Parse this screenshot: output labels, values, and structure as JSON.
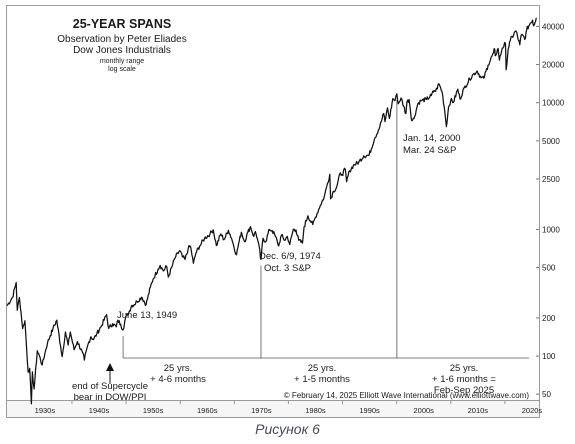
{
  "chart_data": {
    "type": "line",
    "title": "25-YEAR SPANS",
    "subtitle": "Observation by Peter Eliades",
    "series_title": "Dow Jones Industrials",
    "notes": [
      "monthly range",
      "log scale"
    ],
    "scale": "log",
    "ylim": [
      45,
      58000
    ],
    "xlim": [
      1928,
      2026.3
    ],
    "y_ticks": [
      50,
      100,
      200,
      500,
      1000,
      2500,
      5000,
      10000,
      20000,
      40000
    ],
    "x_ticks": [
      "1930s",
      "1940s",
      "1950s",
      "1960s",
      "1970s",
      "1980s",
      "1990s",
      "2000s",
      "2010s",
      "2020s"
    ],
    "grid": false,
    "series": [
      {
        "values": [
          [
            1928.0,
            250
          ],
          [
            1929.0,
            290
          ],
          [
            1929.7,
            381
          ],
          [
            1929.9,
            230
          ],
          [
            1930.3,
            290
          ],
          [
            1930.9,
            165
          ],
          [
            1931.3,
            190
          ],
          [
            1931.9,
            75
          ],
          [
            1932.2,
            80
          ],
          [
            1932.5,
            42
          ],
          [
            1932.7,
            75
          ],
          [
            1933.0,
            55
          ],
          [
            1933.6,
            110
          ],
          [
            1934.0,
            100
          ],
          [
            1934.5,
            85
          ],
          [
            1935.0,
            105
          ],
          [
            1935.5,
            128
          ],
          [
            1936.0,
            145
          ],
          [
            1936.5,
            165
          ],
          [
            1937.2,
            192
          ],
          [
            1937.9,
            120
          ],
          [
            1938.2,
            99
          ],
          [
            1938.8,
            155
          ],
          [
            1939.3,
            122
          ],
          [
            1939.7,
            155
          ],
          [
            1940.4,
            112
          ],
          [
            1941.0,
            130
          ],
          [
            1941.9,
            108
          ],
          [
            1942.3,
            93
          ],
          [
            1943.0,
            125
          ],
          [
            1943.5,
            142
          ],
          [
            1944.0,
            135
          ],
          [
            1944.6,
            150
          ],
          [
            1945.5,
            175
          ],
          [
            1946.4,
            212
          ],
          [
            1946.8,
            165
          ],
          [
            1947.5,
            180
          ],
          [
            1948.2,
            170
          ],
          [
            1948.5,
            192
          ],
          [
            1949.0,
            178
          ],
          [
            1949.45,
            161
          ],
          [
            1949.9,
            200
          ],
          [
            1950.5,
            220
          ],
          [
            1951.0,
            250
          ],
          [
            1951.5,
            255
          ],
          [
            1952.0,
            270
          ],
          [
            1952.9,
            292
          ],
          [
            1953.7,
            255
          ],
          [
            1954.5,
            350
          ],
          [
            1955.0,
            405
          ],
          [
            1955.9,
            485
          ],
          [
            1956.3,
            520
          ],
          [
            1956.9,
            470
          ],
          [
            1957.5,
            510
          ],
          [
            1957.8,
            420
          ],
          [
            1958.5,
            510
          ],
          [
            1959.0,
            590
          ],
          [
            1959.9,
            680
          ],
          [
            1960.4,
            610
          ],
          [
            1960.9,
            580
          ],
          [
            1961.5,
            710
          ],
          [
            1961.9,
            735
          ],
          [
            1962.45,
            540
          ],
          [
            1962.9,
            650
          ],
          [
            1963.6,
            740
          ],
          [
            1964.5,
            850
          ],
          [
            1965.5,
            920
          ],
          [
            1966.1,
            995
          ],
          [
            1966.7,
            745
          ],
          [
            1967.5,
            920
          ],
          [
            1968.1,
            830
          ],
          [
            1968.9,
            985
          ],
          [
            1969.5,
            850
          ],
          [
            1970.4,
            630
          ],
          [
            1970.8,
            770
          ],
          [
            1971.3,
            950
          ],
          [
            1971.9,
            800
          ],
          [
            1972.5,
            950
          ],
          [
            1973.0,
            1050
          ],
          [
            1973.6,
            880
          ],
          [
            1973.9,
            960
          ],
          [
            1974.4,
            800
          ],
          [
            1974.93,
            578
          ],
          [
            1975.3,
            850
          ],
          [
            1975.8,
            800
          ],
          [
            1976.5,
            1000
          ],
          [
            1977.0,
            980
          ],
          [
            1977.6,
            880
          ],
          [
            1978.2,
            740
          ],
          [
            1978.7,
            900
          ],
          [
            1979.3,
            820
          ],
          [
            1979.8,
            880
          ],
          [
            1980.25,
            760
          ],
          [
            1980.9,
            1000
          ],
          [
            1981.4,
            990
          ],
          [
            1981.9,
            820
          ],
          [
            1982.6,
            780
          ],
          [
            1982.9,
            1050
          ],
          [
            1983.6,
            1280
          ],
          [
            1984.5,
            1090
          ],
          [
            1985.0,
            1250
          ],
          [
            1985.9,
            1550
          ],
          [
            1986.6,
            1800
          ],
          [
            1987.2,
            2300
          ],
          [
            1987.65,
            2720
          ],
          [
            1987.8,
            1740
          ],
          [
            1988.3,
            2000
          ],
          [
            1988.9,
            2150
          ],
          [
            1989.6,
            2790
          ],
          [
            1989.9,
            2700
          ],
          [
            1990.5,
            2990
          ],
          [
            1990.75,
            2380
          ],
          [
            1991.3,
            2900
          ],
          [
            1992.0,
            3200
          ],
          [
            1993.0,
            3400
          ],
          [
            1993.9,
            3800
          ],
          [
            1994.9,
            3850
          ],
          [
            1995.9,
            5200
          ],
          [
            1996.9,
            6500
          ],
          [
            1997.6,
            8200
          ],
          [
            1997.85,
            7100
          ],
          [
            1998.3,
            9100
          ],
          [
            1998.65,
            7500
          ],
          [
            1999.3,
            10800
          ],
          [
            1999.7,
            10400
          ],
          [
            2000.04,
            11750
          ],
          [
            2000.3,
            9800
          ],
          [
            2000.8,
            10900
          ],
          [
            2001.3,
            9400
          ],
          [
            2001.7,
            8200
          ],
          [
            2001.9,
            10100
          ],
          [
            2002.3,
            10600
          ],
          [
            2002.8,
            7200
          ],
          [
            2003.2,
            7500
          ],
          [
            2003.9,
            9800
          ],
          [
            2004.5,
            10400
          ],
          [
            2005.5,
            10600
          ],
          [
            2006.4,
            11400
          ],
          [
            2006.9,
            12500
          ],
          [
            2007.2,
            12300
          ],
          [
            2007.8,
            14100
          ],
          [
            2008.4,
            12200
          ],
          [
            2008.9,
            8500
          ],
          [
            2009.19,
            6470
          ],
          [
            2009.6,
            9300
          ],
          [
            2010.0,
            10500
          ],
          [
            2010.5,
            10100
          ],
          [
            2011.3,
            12800
          ],
          [
            2011.7,
            10700
          ],
          [
            2012.5,
            13100
          ],
          [
            2013.5,
            15400
          ],
          [
            2014.0,
            16500
          ],
          [
            2014.9,
            17800
          ],
          [
            2015.6,
            15700
          ],
          [
            2016.1,
            15600
          ],
          [
            2016.9,
            19800
          ],
          [
            2017.9,
            24700
          ],
          [
            2018.1,
            26600
          ],
          [
            2018.2,
            23500
          ],
          [
            2018.75,
            26800
          ],
          [
            2018.98,
            21700
          ],
          [
            2019.5,
            27000
          ],
          [
            2020.1,
            29500
          ],
          [
            2020.23,
            18200
          ],
          [
            2020.6,
            26500
          ],
          [
            2021.0,
            31000
          ],
          [
            2021.9,
            36500
          ],
          [
            2022.05,
            36800
          ],
          [
            2022.75,
            28700
          ],
          [
            2023.0,
            34000
          ],
          [
            2023.8,
            32500
          ],
          [
            2024.0,
            37500
          ],
          [
            2024.7,
            42500
          ],
          [
            2025.1,
            44900
          ],
          [
            2025.3,
            40500
          ],
          [
            2025.8,
            46800
          ]
        ]
      }
    ],
    "markers": [
      {
        "x": 1949.45,
        "label": "June 13, 1949"
      },
      {
        "x": 1974.93,
        "label_lines": [
          "Dec. 6/9, 1974",
          "Oct. 3 S&P"
        ]
      },
      {
        "x": 2000.04,
        "label_lines": [
          "Jan. 14, 2000",
          "Mar. 24 S&P"
        ]
      }
    ],
    "span_labels": [
      {
        "x": 1962.2,
        "lines": [
          "25 yrs.",
          "+ 4-6 months"
        ]
      },
      {
        "x": 1987.5,
        "lines": [
          "25 yrs.",
          "+ 1-5 months"
        ]
      },
      {
        "x": 2013.0,
        "lines": [
          "25 yrs.",
          "+ 1-6 months =",
          "Feb-Sep 2025"
        ]
      }
    ],
    "arrow_label_lines": [
      "end of Supercycle",
      "bear in DOW/PPI"
    ],
    "footer": "© February 14, 2025 Elliott Wave International (www.elliottwave.com)"
  },
  "caption": "Рисунок 6"
}
